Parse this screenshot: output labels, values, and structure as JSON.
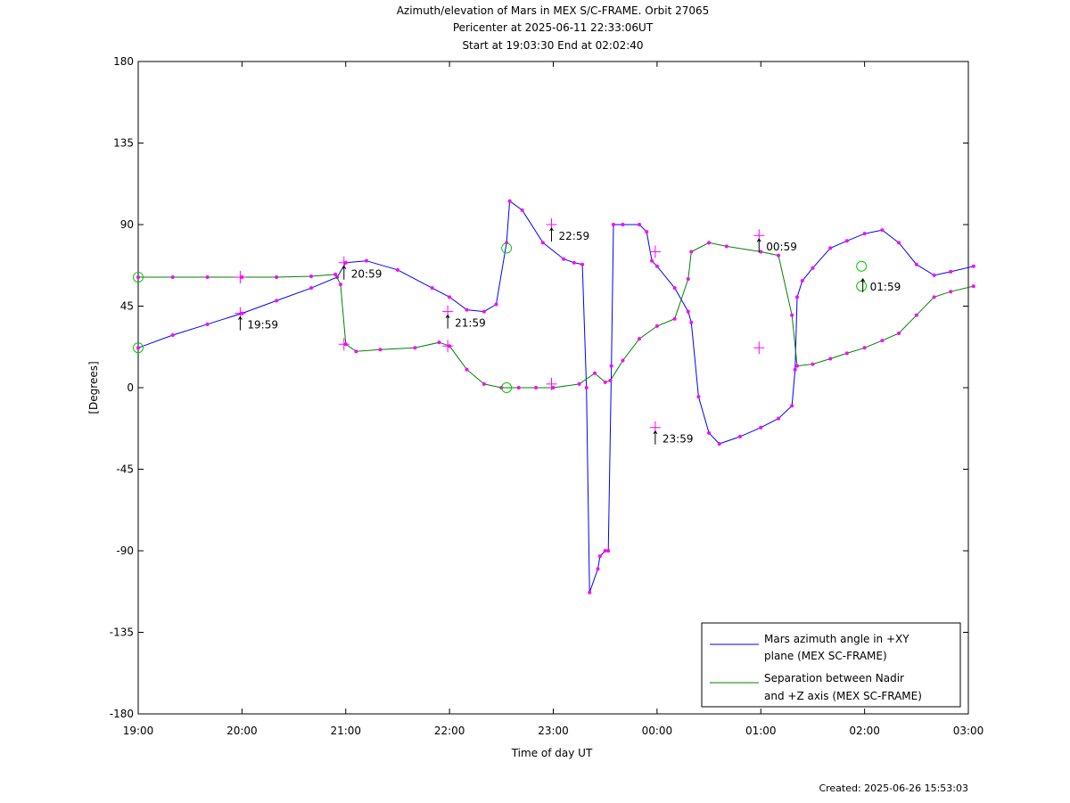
{
  "chart_data": {
    "type": "line",
    "title": "Azimuth/elevation of Mars in MEX S/C-FRAME.  Orbit 27065",
    "subtitle_1": "Pericenter at 2025-06-11 22:33:06UT",
    "subtitle_2": "Start at 19:03:30 End at 02:02:40",
    "xlabel": "Time of day UT",
    "ylabel": "[Degrees]",
    "x_ticks": [
      "19:00",
      "20:00",
      "21:00",
      "22:00",
      "23:00",
      "00:00",
      "01:00",
      "02:00",
      "03:00"
    ],
    "y_ticks": [
      "180",
      "135",
      "90",
      "45",
      "0",
      "-45",
      "-90",
      "-135",
      "-180"
    ],
    "ylim": [
      -180,
      180
    ],
    "x_unit": "hours since 19:00",
    "xlim": [
      0,
      8
    ],
    "grid": false,
    "legend_position": "bottom-right",
    "legend": [
      {
        "line1": "Mars azimuth angle in +XY",
        "line2": "plane (MEX SC-FRAME)",
        "color": "#0000ff"
      },
      {
        "line1": "Separation between Nadir",
        "line2": "and +Z axis (MEX SC-FRAME)",
        "color": "#008000"
      }
    ],
    "series": [
      {
        "name": "Mars azimuth angle in +XY plane (MEX SC-FRAME)",
        "color": "#0000ff",
        "points": [
          [
            0.0,
            22
          ],
          [
            0.333,
            29
          ],
          [
            0.667,
            35
          ],
          [
            1.0,
            41
          ],
          [
            1.333,
            48
          ],
          [
            1.667,
            55
          ],
          [
            1.917,
            61
          ],
          [
            2.0,
            69
          ],
          [
            2.2,
            70
          ],
          [
            2.5,
            65
          ],
          [
            2.833,
            55
          ],
          [
            3.0,
            50
          ],
          [
            3.167,
            43
          ],
          [
            3.333,
            42
          ],
          [
            3.45,
            46
          ],
          [
            3.55,
            80
          ],
          [
            3.58,
            103
          ],
          [
            3.7,
            98
          ],
          [
            3.9,
            80
          ],
          [
            4.1,
            71
          ],
          [
            4.2,
            69
          ],
          [
            4.28,
            68
          ],
          [
            4.32,
            0
          ],
          [
            4.35,
            -113
          ],
          [
            4.43,
            -100
          ],
          [
            4.45,
            -93
          ],
          [
            4.5,
            -90
          ],
          [
            4.53,
            -90
          ],
          [
            4.56,
            12
          ],
          [
            4.58,
            90
          ],
          [
            4.67,
            90
          ],
          [
            4.83,
            90
          ],
          [
            4.9,
            86
          ],
          [
            4.95,
            70
          ],
          [
            5.0,
            67
          ],
          [
            5.17,
            55
          ],
          [
            5.3,
            42
          ],
          [
            5.33,
            36
          ],
          [
            5.4,
            -5
          ],
          [
            5.5,
            -25
          ],
          [
            5.6,
            -31
          ],
          [
            5.8,
            -27
          ],
          [
            6.0,
            -22
          ],
          [
            6.17,
            -17
          ],
          [
            6.3,
            -10
          ],
          [
            6.33,
            10
          ],
          [
            6.35,
            50
          ],
          [
            6.4,
            59
          ],
          [
            6.5,
            66
          ],
          [
            6.67,
            77
          ],
          [
            6.83,
            81
          ],
          [
            7.0,
            85
          ],
          [
            7.17,
            87
          ],
          [
            7.33,
            80
          ],
          [
            7.5,
            68
          ],
          [
            7.67,
            62
          ],
          [
            7.83,
            64
          ],
          [
            8.05,
            67
          ]
        ]
      },
      {
        "name": "Separation between Nadir and +Z axis (MEX SC-FRAME)",
        "color": "#008000",
        "points": [
          [
            0.0,
            61
          ],
          [
            0.333,
            61
          ],
          [
            0.667,
            61
          ],
          [
            1.0,
            61
          ],
          [
            1.333,
            61
          ],
          [
            1.667,
            61.5
          ],
          [
            1.9,
            62.5
          ],
          [
            1.95,
            57
          ],
          [
            2.0,
            24
          ],
          [
            2.1,
            20
          ],
          [
            2.333,
            21
          ],
          [
            2.667,
            22
          ],
          [
            2.9,
            25
          ],
          [
            3.0,
            23
          ],
          [
            3.167,
            10
          ],
          [
            3.333,
            2
          ],
          [
            3.5,
            0
          ],
          [
            3.667,
            0
          ],
          [
            3.833,
            0
          ],
          [
            4.0,
            0
          ],
          [
            4.25,
            2
          ],
          [
            4.4,
            8
          ],
          [
            4.5,
            3
          ],
          [
            4.55,
            4
          ],
          [
            4.67,
            15
          ],
          [
            4.83,
            27
          ],
          [
            5.0,
            34
          ],
          [
            5.17,
            38
          ],
          [
            5.3,
            60
          ],
          [
            5.33,
            75
          ],
          [
            5.5,
            80
          ],
          [
            5.67,
            78
          ],
          [
            6.0,
            75
          ],
          [
            6.17,
            73
          ],
          [
            6.3,
            40
          ],
          [
            6.35,
            12
          ],
          [
            6.5,
            13
          ],
          [
            6.67,
            16
          ],
          [
            6.83,
            19
          ],
          [
            7.0,
            22
          ],
          [
            7.17,
            26
          ],
          [
            7.33,
            30
          ],
          [
            7.5,
            40
          ],
          [
            7.67,
            50
          ],
          [
            7.83,
            53
          ],
          [
            8.05,
            56
          ]
        ]
      }
    ],
    "hour_markers": [
      {
        "label": "19:59",
        "x": 0.983,
        "y": 41,
        "series": "azimuth"
      },
      {
        "label": "20:59",
        "x": 1.983,
        "y": 69,
        "series": "azimuth"
      },
      {
        "label": "21:59",
        "x": 2.983,
        "y": 42,
        "series": "azimuth"
      },
      {
        "label": "22:59",
        "x": 3.983,
        "y": 90,
        "series": "azimuth"
      },
      {
        "label": "23:59",
        "x": 4.983,
        "y": -22,
        "series": "azimuth"
      },
      {
        "label": "00:59",
        "x": 5.983,
        "y": 84,
        "series": "azimuth"
      },
      {
        "label": "01:59",
        "x": 6.983,
        "y": 62,
        "series": "azimuth"
      }
    ],
    "plus_markers": [
      [
        0.983,
        41
      ],
      [
        1.983,
        69
      ],
      [
        2.983,
        42
      ],
      [
        3.983,
        90
      ],
      [
        4.983,
        -22
      ],
      [
        5.983,
        84
      ],
      [
        0.983,
        61
      ],
      [
        1.983,
        24
      ],
      [
        2.983,
        23
      ],
      [
        3.983,
        2
      ],
      [
        4.983,
        75
      ],
      [
        5.983,
        22
      ]
    ],
    "circle_markers": [
      [
        0.0,
        22
      ],
      [
        0.0,
        61
      ],
      [
        3.55,
        0
      ],
      [
        3.55,
        77
      ],
      [
        6.97,
        67
      ],
      [
        6.97,
        56
      ]
    ]
  },
  "footer": {
    "created": "Created: 2025-06-26 15:53:03"
  }
}
